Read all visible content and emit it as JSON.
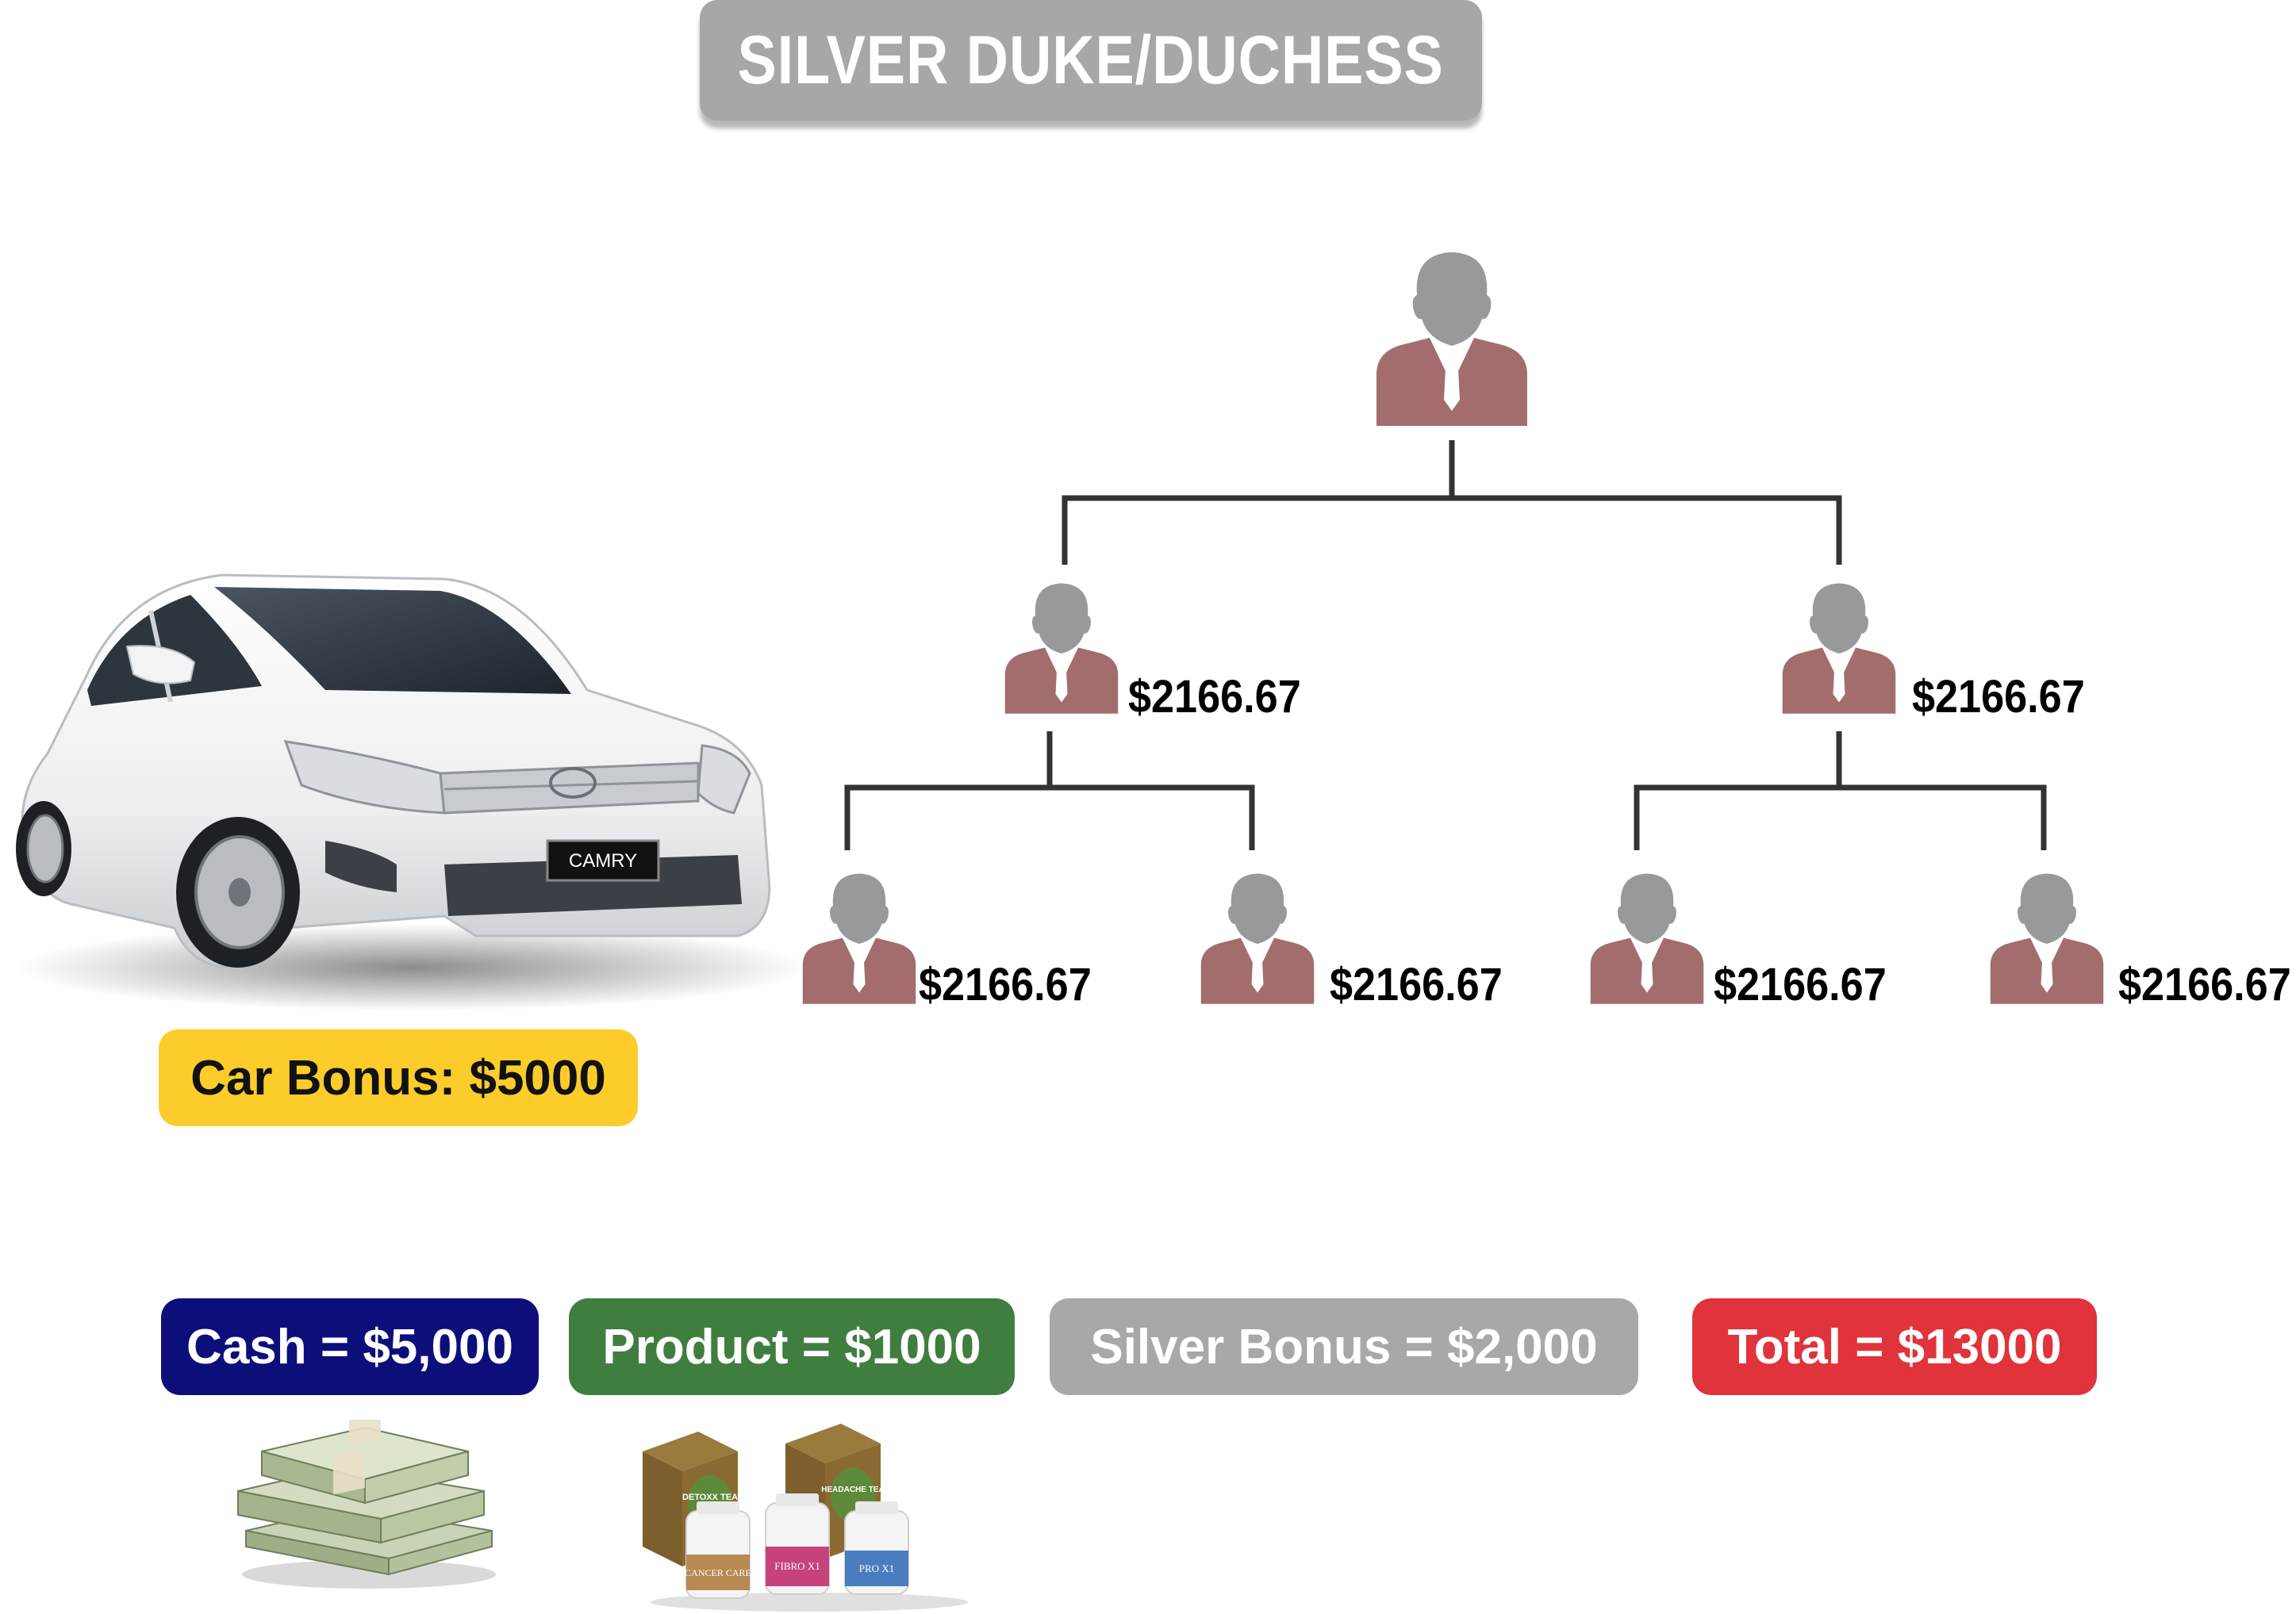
{
  "title": "SILVER DUKE/DUCHESS",
  "tree": {
    "level1_amounts": [
      "$2166.67",
      "$2166.67"
    ],
    "level2_amounts": [
      "$2166.67",
      "$2166.67",
      "$2166.67",
      "$2166.67"
    ]
  },
  "car": {
    "plate": "CAMRY",
    "bonus_label": "Car Bonus: $5000"
  },
  "bonuses": {
    "cash": "Cash = $5,000",
    "product": "Product = $1000",
    "silver": "Silver Bonus = $2,000",
    "total": "Total =  $13000"
  },
  "products": {
    "labels": [
      "DETOXX TEA",
      "HEADACHE TEA",
      "CANCER CARE",
      "FIBRO X1",
      "PRO X1"
    ]
  },
  "colors": {
    "person_head": "#98999b",
    "person_body": "#a36d6d",
    "connector": "#333333",
    "title_bg": "#a6a7a9",
    "car_bonus": "#fccc2a",
    "cash": "#0e0e7a",
    "product": "#3f7e3f",
    "silver": "#a7a8aa",
    "total": "#e0333b"
  }
}
